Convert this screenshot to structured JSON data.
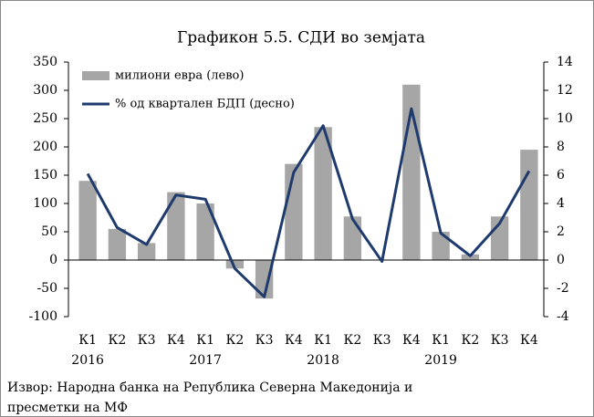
{
  "chart_data": {
    "type": "bar_line",
    "title": "Графикон 5.5. СДИ во земјата",
    "categories": [
      "К1",
      "К2",
      "К3",
      "К4",
      "К1",
      "К2",
      "К3",
      "К4",
      "К1",
      "К2",
      "К3",
      "К4",
      "К1",
      "К2",
      "К3",
      "К4"
    ],
    "years": [
      "2016",
      "2017",
      "2018",
      "2019"
    ],
    "series": [
      {
        "name": "милиони евра (лево)",
        "color": "#a6a6a6",
        "kind": "bar",
        "values": [
          140,
          55,
          30,
          120,
          100,
          -15,
          -68,
          170,
          235,
          77,
          0,
          310,
          50,
          10,
          77,
          195
        ]
      },
      {
        "name": "% од квартален БДП (десно)",
        "color": "#1f3b6e",
        "kind": "line",
        "axis": "y2",
        "values": [
          6.1,
          2.3,
          1.1,
          4.6,
          4.3,
          -0.6,
          -2.6,
          6.2,
          9.5,
          2.9,
          -0.1,
          10.7,
          1.9,
          0.3,
          2.6,
          6.3
        ]
      }
    ],
    "ylim": [
      -100,
      350
    ],
    "yticks": [
      -100,
      -50,
      0,
      50,
      100,
      150,
      200,
      250,
      300,
      350
    ],
    "y2lim": [
      -4,
      14
    ],
    "y2ticks": [
      -4,
      -2,
      0,
      2,
      4,
      6,
      8,
      10,
      12,
      14
    ],
    "source": [
      "Извор: Народна банка на Република Северна Македонија и",
      "пресметки на МФ"
    ]
  }
}
